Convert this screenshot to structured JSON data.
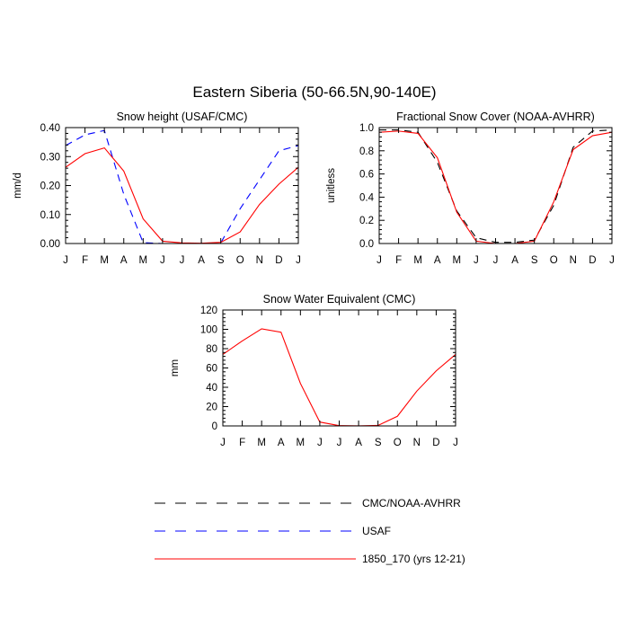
{
  "title": "Eastern Siberia (50-66.5N,90-140E)",
  "colors": {
    "CMC/NOAA-AVHRR": "#000000",
    "USAF": "#0000ff",
    "1850_170 (yrs 12-21)": "#ff0000"
  },
  "legend": [
    {
      "name": "CMC/NOAA-AVHRR",
      "style": "dashed"
    },
    {
      "name": "USAF",
      "style": "dashed"
    },
    {
      "name": "1850_170 (yrs 12-21)",
      "style": "solid"
    }
  ],
  "chart_data": [
    {
      "type": "line",
      "title": "Snow height (USAF/CMC)",
      "ylabel": "mm/d",
      "xlabel": "",
      "categories": [
        "J",
        "F",
        "M",
        "A",
        "M",
        "J",
        "J",
        "A",
        "S",
        "O",
        "N",
        "D",
        "J"
      ],
      "ylim": [
        0,
        0.4
      ],
      "yticks": [
        "0.00",
        "0.10",
        "0.20",
        "0.30",
        "0.40"
      ],
      "series": [
        {
          "name": "CMC/NOAA-AVHRR",
          "style": "dashed",
          "values": [
            0,
            0,
            0,
            0,
            0,
            0,
            0,
            0,
            0,
            0,
            0,
            0,
            0
          ]
        },
        {
          "name": "USAF",
          "style": "dashed",
          "values": [
            0.338,
            0.375,
            0.39,
            0.17,
            0.003,
            0.0,
            0.0,
            0.0,
            0.002,
            0.12,
            0.22,
            0.32,
            0.338
          ]
        },
        {
          "name": "1850_170 (yrs 12-21)",
          "style": "solid",
          "values": [
            0.263,
            0.31,
            0.33,
            0.25,
            0.085,
            0.008,
            0.002,
            0.001,
            0.004,
            0.04,
            0.135,
            0.205,
            0.263
          ]
        }
      ]
    },
    {
      "type": "line",
      "title": "Fractional Snow Cover (NOAA-AVHRR)",
      "ylabel": "unitless",
      "xlabel": "",
      "categories": [
        "J",
        "F",
        "M",
        "A",
        "M",
        "J",
        "J",
        "A",
        "S",
        "O",
        "N",
        "D",
        "J"
      ],
      "ylim": [
        0,
        1.0
      ],
      "yticks": [
        "0.0",
        "0.2",
        "0.4",
        "0.6",
        "0.8",
        "1.0"
      ],
      "series": [
        {
          "name": "CMC/NOAA-AVHRR",
          "style": "dashed",
          "values": [
            0.98,
            0.98,
            0.96,
            0.7,
            0.28,
            0.05,
            0.01,
            0.01,
            0.03,
            0.33,
            0.83,
            0.97,
            0.98
          ]
        },
        {
          "name": "1850_170 (yrs 12-21)",
          "style": "solid",
          "values": [
            0.96,
            0.97,
            0.95,
            0.74,
            0.27,
            0.02,
            0.0,
            0.0,
            0.02,
            0.36,
            0.81,
            0.93,
            0.96
          ]
        }
      ]
    },
    {
      "type": "line",
      "title": "Snow Water Equivalent (CMC)",
      "ylabel": "mm",
      "xlabel": "",
      "categories": [
        "J",
        "F",
        "M",
        "A",
        "M",
        "J",
        "J",
        "A",
        "S",
        "O",
        "N",
        "D",
        "J"
      ],
      "ylim": [
        0,
        120
      ],
      "yticks": [
        "0",
        "20",
        "40",
        "60",
        "80",
        "100",
        "120"
      ],
      "series": [
        {
          "name": "CMC/NOAA-AVHRR",
          "style": "dashed",
          "values": [
            0,
            0,
            0,
            0,
            0,
            0,
            0,
            0,
            0,
            0,
            0,
            0,
            0
          ]
        },
        {
          "name": "1850_170 (yrs 12-21)",
          "style": "solid",
          "values": [
            74,
            88,
            100.5,
            97,
            44,
            4,
            0.3,
            0.1,
            0.5,
            10,
            36,
            57,
            74
          ]
        }
      ]
    }
  ]
}
